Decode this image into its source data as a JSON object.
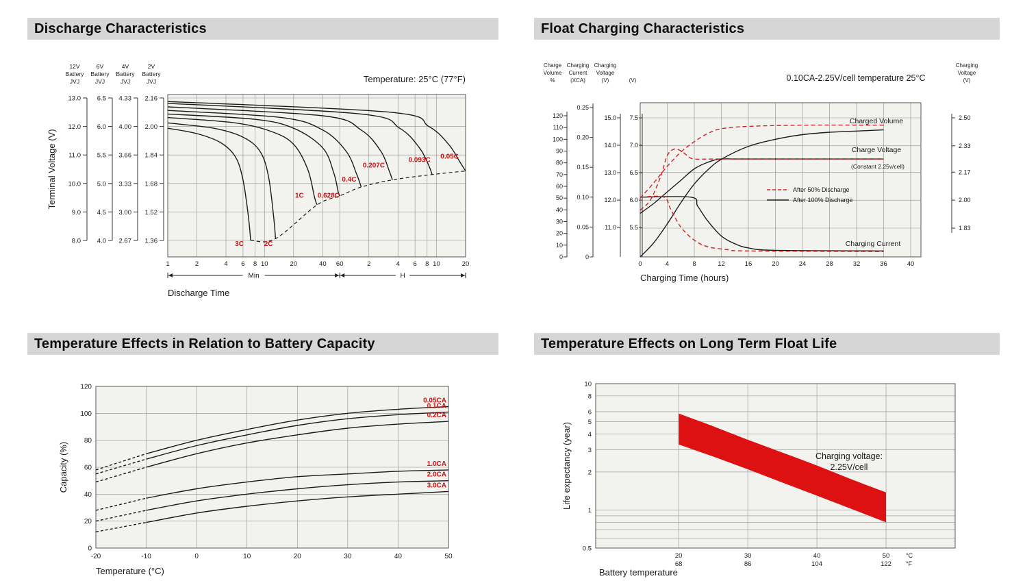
{
  "colors": {
    "plot_bg": "#f2f2ef",
    "grid": "#8f8f8f",
    "border": "#555555",
    "curve": "#1a1a1a",
    "red": "#cc1111",
    "dashed_red": "#cc2222",
    "band_red": "#dd1111",
    "header_bg": "#d6d6d6"
  },
  "chart_data": [
    {
      "id": "discharge-characteristics",
      "type": "line",
      "title": "Discharge Characteristics",
      "temperature_note": "Temperature: 25°C (77°F)",
      "ylabel": "Terminal Voltage (V)",
      "xlabel": "Discharge Time",
      "x_axis_sections": [
        "Min",
        "H"
      ],
      "x_ticks_minutes": [
        "1",
        "2",
        "4",
        "6",
        "8",
        "10",
        "20",
        "40",
        "60"
      ],
      "x_ticks_hours": [
        "2",
        "4",
        "6",
        "8",
        "10",
        "20"
      ],
      "voltage_scales": [
        {
          "header": [
            "12V",
            "Battery",
            "JVJ"
          ],
          "ticks": [
            "13.0",
            "12.0",
            "11.0",
            "10.0",
            "9.0",
            "8.0"
          ]
        },
        {
          "header": [
            "6V",
            "Battery",
            "JVJ"
          ],
          "ticks": [
            "6.5",
            "6.0",
            "5.5",
            "5.0",
            "4.5",
            "4.0"
          ]
        },
        {
          "header": [
            "4V",
            "Battery",
            "JVJ"
          ],
          "ticks": [
            "4.33",
            "4.00",
            "3.66",
            "3.33",
            "3.00",
            "2.67"
          ]
        },
        {
          "header": [
            "2V",
            "Battery",
            "JVJ"
          ],
          "ticks": [
            "2.16",
            "2.00",
            "1.84",
            "1.68",
            "1.52",
            "1.36"
          ]
        }
      ],
      "cell_voltage_range": [
        1.36,
        2.16
      ],
      "series": [
        {
          "name": "3C",
          "points": [
            [
              1,
              1.99
            ],
            [
              2,
              1.96
            ],
            [
              3.5,
              1.91
            ],
            [
              5,
              1.83
            ],
            [
              6,
              1.7
            ],
            [
              6.8,
              1.5
            ],
            [
              7.2,
              1.36
            ]
          ]
        },
        {
          "name": "2C",
          "points": [
            [
              1,
              2.02
            ],
            [
              3,
              1.99
            ],
            [
              6,
              1.94
            ],
            [
              9,
              1.86
            ],
            [
              11,
              1.72
            ],
            [
              12.5,
              1.48
            ],
            [
              13,
              1.37
            ]
          ]
        },
        {
          "name": "1C",
          "points": [
            [
              1,
              2.05
            ],
            [
              5,
              2.02
            ],
            [
              12,
              1.97
            ],
            [
              20,
              1.9
            ],
            [
              28,
              1.76
            ],
            [
              33,
              1.6
            ],
            [
              35,
              1.56
            ]
          ]
        },
        {
          "name": "0.628C",
          "points": [
            [
              1,
              2.07
            ],
            [
              8,
              2.04
            ],
            [
              20,
              1.99
            ],
            [
              40,
              1.88
            ],
            [
              52,
              1.74
            ],
            [
              58,
              1.63
            ],
            [
              60,
              1.61
            ]
          ]
        },
        {
          "name": "0.4C",
          "points": [
            [
              1,
              2.09
            ],
            [
              15,
              2.05
            ],
            [
              40,
              1.98
            ],
            [
              70,
              1.86
            ],
            [
              90,
              1.73
            ],
            [
              100,
              1.66
            ]
          ]
        },
        {
          "name": "0.207C",
          "points": [
            [
              1,
              2.11
            ],
            [
              40,
              2.06
            ],
            [
              100,
              1.98
            ],
            [
              160,
              1.86
            ],
            [
              195,
              1.75
            ],
            [
              210,
              1.7
            ]
          ]
        },
        {
          "name": "0.093C",
          "points": [
            [
              1,
              2.13
            ],
            [
              100,
              2.07
            ],
            [
              250,
              1.99
            ],
            [
              400,
              1.88
            ],
            [
              500,
              1.78
            ],
            [
              540,
              1.73
            ]
          ]
        },
        {
          "name": "0.05C",
          "points": [
            [
              1,
              2.14
            ],
            [
              200,
              2.08
            ],
            [
              500,
              2.0
            ],
            [
              800,
              1.9
            ],
            [
              1050,
              1.8
            ],
            [
              1200,
              1.75
            ]
          ]
        }
      ],
      "cutoff_curve_dashed": [
        [
          7.2,
          1.36
        ],
        [
          13,
          1.37
        ],
        [
          35,
          1.56
        ],
        [
          60,
          1.61
        ],
        [
          100,
          1.66
        ],
        [
          210,
          1.7
        ],
        [
          540,
          1.73
        ],
        [
          1200,
          1.75
        ]
      ],
      "rate_labels": [
        {
          "text": "3C",
          "t": 5.5,
          "v": 1.33
        },
        {
          "text": "2C",
          "t": 11,
          "v": 1.33
        },
        {
          "text": "1C",
          "t": 23,
          "v": 1.6
        },
        {
          "text": "0.628C",
          "t": 46,
          "v": 1.6
        },
        {
          "text": "0.4C",
          "t": 75,
          "v": 1.69
        },
        {
          "text": "0.207C",
          "t": 135,
          "v": 1.77
        },
        {
          "text": "0.093C",
          "t": 400,
          "v": 1.8
        },
        {
          "text": "0.05C",
          "t": 820,
          "v": 1.82
        }
      ]
    },
    {
      "id": "float-charging",
      "type": "line",
      "title": "Float Charging Characteristics",
      "condition_note": "0.10CA-2.25V/cell  temperature 25°C",
      "xlabel": "Charging Time (hours)",
      "x_ticks": [
        "0",
        "4",
        "8",
        "12",
        "16",
        "20",
        "24",
        "28",
        "32",
        "36",
        "40"
      ],
      "left_axes": [
        {
          "header": [
            "Charge",
            "Volume",
            "%"
          ],
          "ticks": [
            "120",
            "110",
            "100",
            "90",
            "80",
            "70",
            "60",
            "50",
            "40",
            "30",
            "20",
            "10",
            "0"
          ]
        },
        {
          "header": [
            "Charging",
            "Current",
            "(XCA)"
          ],
          "ticks": [
            "0.25",
            "0.20",
            "0.15",
            "0.10",
            "0.05",
            "0"
          ]
        },
        {
          "header": [
            "Charging",
            "Voltage",
            "(V)"
          ],
          "ticks": [
            "15.0",
            "14.0",
            "13.0",
            "12.0",
            "11.0"
          ]
        },
        {
          "header": [
            "",
            "",
            "(V)"
          ],
          "ticks": [
            "7.5",
            "7.0",
            "6.5",
            "6.0",
            "5.5"
          ]
        }
      ],
      "right_axis": {
        "header": [
          "Charging",
          "Voltage",
          "(V)"
        ],
        "ticks": [
          "2.50",
          "2.33",
          "2.17",
          "2.00",
          "1.83"
        ]
      },
      "curve_labels": {
        "volume": "Charged Volume",
        "voltage": "Charge Voltage",
        "voltage_sub": "(Constant 2.25v/cell)",
        "current": "Charging Current"
      },
      "legend": [
        {
          "style": "dashed-red",
          "label": "After  50% Discharge"
        },
        {
          "style": "solid-black",
          "label": "After 100% Discharge"
        }
      ],
      "series": [
        {
          "name": "charged-volume-100",
          "axis": "volume",
          "style": "solid",
          "points": [
            [
              0,
              0
            ],
            [
              2,
              12
            ],
            [
              4,
              28
            ],
            [
              6,
              46
            ],
            [
              8,
              62
            ],
            [
              10,
              74
            ],
            [
              12,
              83
            ],
            [
              16,
              94
            ],
            [
              20,
              100
            ],
            [
              24,
              104
            ],
            [
              28,
              106
            ],
            [
              32,
              107
            ],
            [
              36,
              108
            ]
          ]
        },
        {
          "name": "charged-volume-50",
          "axis": "volume",
          "style": "dashed",
          "points": [
            [
              0,
              50
            ],
            [
              2,
              63
            ],
            [
              4,
              77
            ],
            [
              6,
              89
            ],
            [
              8,
              98
            ],
            [
              10,
              105
            ],
            [
              12,
              109
            ],
            [
              16,
              111
            ],
            [
              24,
              112
            ],
            [
              36,
              112
            ]
          ]
        },
        {
          "name": "charge-voltage-100",
          "axis": "cell",
          "style": "solid",
          "points": [
            [
              0,
              1.92
            ],
            [
              2,
              1.98
            ],
            [
              4,
              2.05
            ],
            [
              6,
              2.12
            ],
            [
              8,
              2.19
            ],
            [
              10,
              2.23
            ],
            [
              12,
              2.25
            ],
            [
              16,
              2.25
            ],
            [
              36,
              2.25
            ]
          ]
        },
        {
          "name": "charge-voltage-50",
          "axis": "cell",
          "style": "dashed",
          "points": [
            [
              0,
              1.94
            ],
            [
              1.5,
              2.0
            ],
            [
              3,
              2.14
            ],
            [
              4,
              2.27
            ],
            [
              5,
              2.31
            ],
            [
              6,
              2.3
            ],
            [
              7,
              2.27
            ],
            [
              8,
              2.25
            ],
            [
              12,
              2.25
            ],
            [
              36,
              2.25
            ]
          ]
        },
        {
          "name": "charging-current-100",
          "axis": "current",
          "style": "solid",
          "points": [
            [
              0,
              0.1
            ],
            [
              7.5,
              0.1
            ],
            [
              8.5,
              0.085
            ],
            [
              10,
              0.06
            ],
            [
              12,
              0.035
            ],
            [
              14,
              0.022
            ],
            [
              16,
              0.015
            ],
            [
              20,
              0.011
            ],
            [
              36,
              0.01
            ]
          ]
        },
        {
          "name": "charging-current-50",
          "axis": "current",
          "style": "dashed",
          "points": [
            [
              0,
              0.1
            ],
            [
              3.5,
              0.1
            ],
            [
              4.5,
              0.08
            ],
            [
              6,
              0.05
            ],
            [
              8,
              0.028
            ],
            [
              10,
              0.017
            ],
            [
              13,
              0.012
            ],
            [
              16,
              0.01
            ],
            [
              36,
              0.009
            ]
          ]
        }
      ]
    },
    {
      "id": "temperature-capacity",
      "type": "line",
      "title": "Temperature Effects in Relation to Battery Capacity",
      "xlabel": "Temperature (°C)",
      "ylabel": "Capacity (%)",
      "x_ticks": [
        "-20",
        "-10",
        "0",
        "10",
        "20",
        "30",
        "40",
        "50"
      ],
      "y_ticks": [
        "0",
        "20",
        "40",
        "60",
        "80",
        "100",
        "120"
      ],
      "x_values": [
        -20,
        -10,
        0,
        10,
        20,
        30,
        40,
        50
      ],
      "dashed_below_c": -10,
      "series": [
        {
          "name": "0.05CA",
          "values": [
            58,
            70,
            80,
            88,
            95,
            100,
            103,
            105
          ]
        },
        {
          "name": "0.1CA",
          "values": [
            55,
            66,
            76,
            84,
            91,
            96,
            99,
            101
          ]
        },
        {
          "name": "0.2CA",
          "values": [
            49,
            60,
            70,
            78,
            84,
            89,
            92,
            94
          ]
        },
        {
          "name": "1.0CA",
          "values": [
            28,
            37,
            44,
            49,
            53,
            55,
            57,
            58
          ]
        },
        {
          "name": "2.0CA",
          "values": [
            20,
            28,
            35,
            40,
            44,
            47,
            49,
            50
          ]
        },
        {
          "name": "3.0CA",
          "values": [
            12,
            19,
            26,
            31,
            35,
            38,
            40,
            42
          ]
        }
      ]
    },
    {
      "id": "float-life",
      "type": "area",
      "title": "Temperature Effects on Long Term Float Life",
      "xlabel": "Battery temperature",
      "ylabel": "Life expectancy (year)",
      "annotation": [
        "Charging voltage:",
        "2.25V/cell"
      ],
      "y_ticks": [
        "10",
        "8",
        "6",
        "5",
        "4",
        "3",
        "2",
        "1",
        "0.5"
      ],
      "y_minor": [
        0.9,
        0.8,
        0.7,
        0.6
      ],
      "x_ticks_c": [
        "20",
        "30",
        "40",
        "50"
      ],
      "x_ticks_f": [
        "68",
        "86",
        "104",
        "122"
      ],
      "unit_c": "°C",
      "unit_f": "°F",
      "band_upper": [
        [
          20,
          5.8
        ],
        [
          25,
          4.6
        ],
        [
          30,
          3.6
        ],
        [
          35,
          2.85
        ],
        [
          40,
          2.25
        ],
        [
          45,
          1.75
        ],
        [
          50,
          1.38
        ]
      ],
      "band_lower": [
        [
          20,
          3.3
        ],
        [
          25,
          2.65
        ],
        [
          30,
          2.1
        ],
        [
          35,
          1.65
        ],
        [
          40,
          1.3
        ],
        [
          45,
          1.02
        ],
        [
          50,
          0.8
        ]
      ]
    }
  ]
}
